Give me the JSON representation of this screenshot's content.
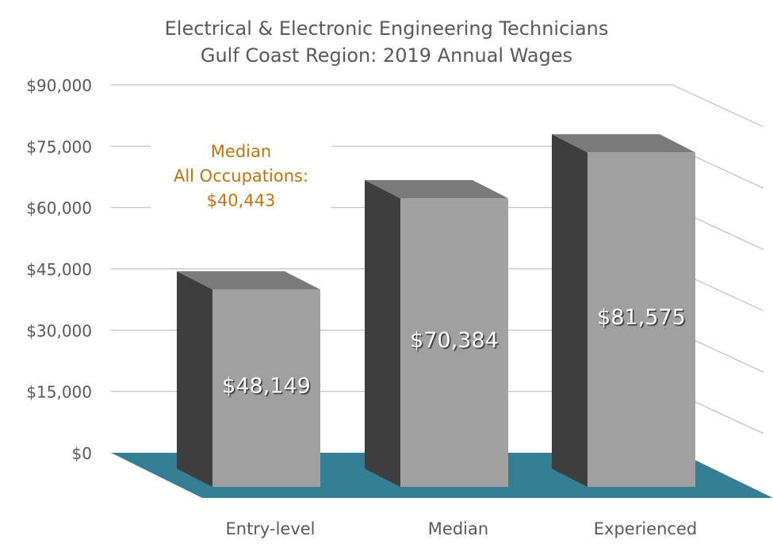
{
  "chart_data": {
    "type": "bar",
    "style": "3d-column",
    "title": "Electrical & Electronic Engineering Technicians",
    "subtitle": "Gulf Coast Region: 2019 Annual Wages",
    "categories": [
      "Entry-level",
      "Median",
      "Experienced"
    ],
    "values": [
      48149,
      70384,
      81575
    ],
    "data_labels": [
      "$48,149",
      "$70,384",
      "$81,575"
    ],
    "y_ticks": [
      0,
      15000,
      30000,
      45000,
      60000,
      75000,
      90000
    ],
    "y_tick_labels": [
      "$0",
      "$15,000",
      "$30,000",
      "$45,000",
      "$60,000",
      "$75,000",
      "$90,000"
    ],
    "ylim": [
      0,
      90000
    ],
    "grid": true,
    "legend": "none",
    "annotation": {
      "lines": [
        "Median",
        "All Occupations:",
        "$40,443"
      ],
      "value": 40443
    },
    "colors": {
      "bar_front": "#a0a0a0",
      "bar_side": "#3e3e3e",
      "bar_top": "#7a7a7a",
      "floor": "#347f93",
      "annotation": "#c0750f",
      "gridline": "#bfbfbf"
    }
  }
}
